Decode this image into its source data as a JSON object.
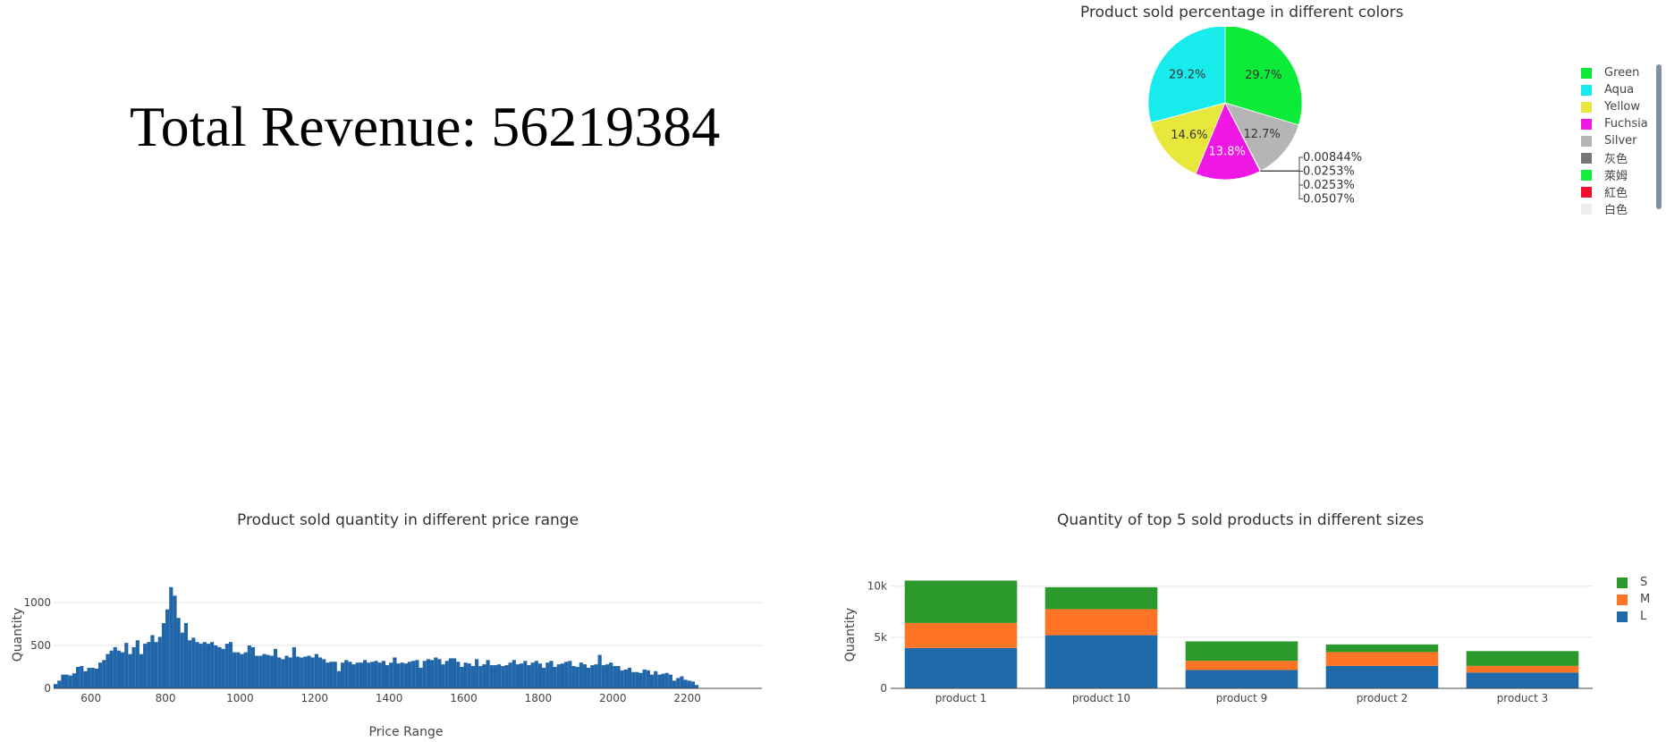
{
  "kpi": {
    "text": "Total Revenue: 56219384"
  },
  "chart_data": [
    {
      "type": "pie",
      "title": "Product sold percentage in different colors",
      "legend_position": "right",
      "slices": [
        {
          "label": "Green",
          "value": 29.7,
          "text": "29.7%",
          "color": "#0beb37"
        },
        {
          "label": "Silver",
          "value": 12.7,
          "text": "12.7%",
          "color": "#b5b5b5"
        },
        {
          "label": "灰色",
          "value": 0.00844,
          "text": "0.00844%",
          "color": "#777777"
        },
        {
          "label": "萊姆",
          "value": 0.0253,
          "text": "0.0253%",
          "color": "#12ee3c"
        },
        {
          "label": "紅色",
          "value": 0.0253,
          "text": "0.0253%",
          "color": "#f4102a"
        },
        {
          "label": "白色",
          "value": 0.0507,
          "text": "0.0507%",
          "color": "#eeeeee"
        },
        {
          "label": "Fuchsia",
          "value": 13.8,
          "text": "13.8%",
          "color": "#ee17e4"
        },
        {
          "label": "Yellow",
          "value": 14.6,
          "text": "14.6%",
          "color": "#e8e83c"
        },
        {
          "label": "Aqua",
          "value": 29.2,
          "text": "29.2%",
          "color": "#18ebeb"
        }
      ],
      "legend": [
        "Green",
        "Aqua",
        "Yellow",
        "Fuchsia",
        "Silver",
        "灰色",
        "萊姆",
        "紅色",
        "白色"
      ]
    },
    {
      "type": "bar",
      "subtype": "histogram",
      "title": "Product sold quantity in different price range",
      "xlabel": "Price Range",
      "ylabel": "Quantity",
      "xlim": [
        500,
        2400
      ],
      "ylim": [
        0,
        1250
      ],
      "xticks": [
        600,
        800,
        1000,
        1200,
        1400,
        1600,
        1800,
        2000,
        2200
      ],
      "yticks": [
        0,
        500,
        1000
      ],
      "bin_start": 500,
      "bin_width": 10,
      "color": "#2166a8",
      "values": [
        50,
        90,
        160,
        160,
        150,
        175,
        250,
        260,
        200,
        240,
        240,
        230,
        300,
        330,
        400,
        440,
        480,
        440,
        420,
        530,
        400,
        480,
        560,
        400,
        520,
        540,
        620,
        540,
        600,
        760,
        920,
        1180,
        1080,
        820,
        650,
        760,
        560,
        590,
        540,
        520,
        540,
        520,
        540,
        500,
        480,
        460,
        520,
        540,
        420,
        420,
        400,
        420,
        500,
        480,
        380,
        380,
        400,
        390,
        380,
        460,
        360,
        340,
        380,
        360,
        480,
        370,
        360,
        370,
        380,
        360,
        400,
        360,
        340,
        300,
        310,
        310,
        200,
        300,
        330,
        310,
        280,
        300,
        300,
        330,
        300,
        310,
        320,
        300,
        320,
        270,
        300,
        360,
        290,
        300,
        290,
        310,
        320,
        330,
        240,
        320,
        340,
        330,
        360,
        340,
        280,
        320,
        350,
        350,
        310,
        250,
        300,
        290,
        260,
        340,
        260,
        280,
        330,
        270,
        270,
        280,
        260,
        270,
        300,
        330,
        280,
        290,
        320,
        270,
        300,
        320,
        290,
        240,
        300,
        320,
        250,
        280,
        290,
        310,
        320,
        260,
        250,
        300,
        280,
        240,
        270,
        280,
        390,
        270,
        280,
        300,
        260,
        260,
        210,
        220,
        240,
        190,
        190,
        180,
        220,
        210,
        160,
        200,
        160,
        170,
        180,
        160,
        90,
        120,
        140,
        100,
        90,
        80,
        40
      ]
    },
    {
      "type": "bar",
      "subtype": "stacked",
      "title": "Quantity of top 5 sold products in different sizes",
      "ylabel": "Quantity",
      "ylim": [
        0,
        10500
      ],
      "yticks": [
        0,
        5000,
        10000
      ],
      "ytick_labels": [
        "0",
        "5k",
        "10k"
      ],
      "categories": [
        "product 1",
        "product 10",
        "product 9",
        "product 2",
        "product 3"
      ],
      "series": [
        {
          "name": "L",
          "color": "#1f6aa8",
          "values": [
            3950,
            5200,
            1800,
            2200,
            1550
          ]
        },
        {
          "name": "M",
          "color": "#ff7425",
          "values": [
            2450,
            2550,
            900,
            1350,
            650
          ]
        },
        {
          "name": "S",
          "color": "#2c992c",
          "values": [
            4150,
            2150,
            1900,
            750,
            1450
          ]
        }
      ],
      "legend": [
        "S",
        "M",
        "L"
      ]
    }
  ]
}
